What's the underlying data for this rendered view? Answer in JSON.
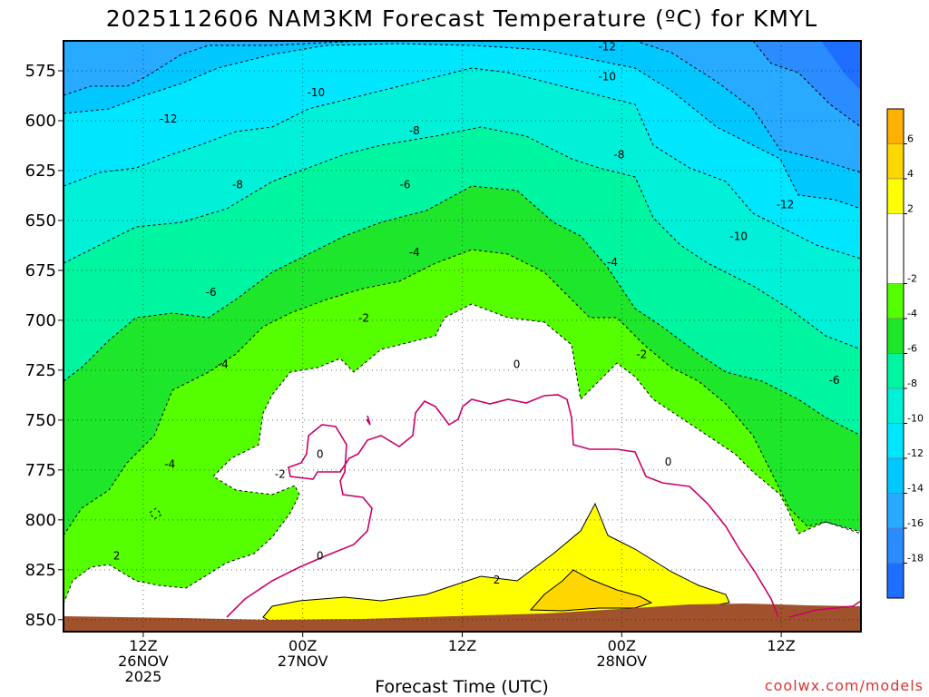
{
  "chart_data": {
    "type": "contour",
    "title": "2025112606 NAM3KM Forecast Temperature (ºC) for KMYL",
    "xlabel": "Forecast Time (UTC)",
    "ylabel": "",
    "credit": "coolwx.com/models",
    "credit_color": "#dd3333",
    "x_range_hours": [
      0,
      60
    ],
    "y_range_hpa": [
      560,
      856
    ],
    "y_ticks": [
      575,
      600,
      625,
      650,
      675,
      700,
      725,
      750,
      775,
      800,
      825,
      850
    ],
    "x_ticks": [
      {
        "hour": 6,
        "line1": "12Z",
        "line2": "26NOV",
        "line3": "2025"
      },
      {
        "hour": 18,
        "line1": "00Z",
        "line2": "27NOV",
        "line3": ""
      },
      {
        "hour": 30,
        "line1": "12Z",
        "line2": "",
        "line3": ""
      },
      {
        "hour": 42,
        "line1": "00Z",
        "line2": "28NOV",
        "line3": ""
      },
      {
        "hour": 54,
        "line1": "12Z",
        "line2": "",
        "line3": ""
      }
    ],
    "colorbar": [
      {
        "lo": -20,
        "hi": -18,
        "color": "#1e6eff"
      },
      {
        "lo": -18,
        "hi": -16,
        "color": "#2a8cff"
      },
      {
        "lo": -16,
        "hi": -14,
        "color": "#27aaff"
      },
      {
        "lo": -14,
        "hi": -12,
        "color": "#00c8ff"
      },
      {
        "lo": -12,
        "hi": -10,
        "color": "#00e6ff"
      },
      {
        "lo": -10,
        "hi": -8,
        "color": "#00f0d8"
      },
      {
        "lo": -8,
        "hi": -6,
        "color": "#00f5a0"
      },
      {
        "lo": -6,
        "hi": -4,
        "color": "#1ee62a"
      },
      {
        "lo": -4,
        "hi": -2,
        "color": "#55ff00"
      },
      {
        "lo": -2,
        "hi": 2,
        "color": "#ffffff"
      },
      {
        "lo": 2,
        "hi": 4,
        "color": "#ffff00"
      },
      {
        "lo": 4,
        "hi": 6,
        "color": "#ffd700"
      },
      {
        "lo": 6,
        "hi": 8,
        "color": "#ffb000"
      }
    ],
    "colorbar_labels": [
      "6",
      "4",
      "2",
      "-2",
      "-4",
      "-6",
      "-8",
      "-10",
      "-12",
      "-14",
      "-16",
      "-18"
    ],
    "ground_color": "#a0522d",
    "zero_line_color": "#cc0066",
    "contour_labels": [
      {
        "text": "-12",
        "hour": 40.9,
        "p": 563
      },
      {
        "text": "-10",
        "hour": 19.0,
        "p": 586
      },
      {
        "text": "-10",
        "hour": 40.9,
        "p": 578
      },
      {
        "text": "-12",
        "hour": 7.9,
        "p": 599
      },
      {
        "text": "-8",
        "hour": 26.4,
        "p": 605
      },
      {
        "text": "-8",
        "hour": 41.8,
        "p": 617
      },
      {
        "text": "-12",
        "hour": 54.3,
        "p": 642
      },
      {
        "text": "-8",
        "hour": 13.1,
        "p": 632
      },
      {
        "text": "-6",
        "hour": 25.7,
        "p": 632
      },
      {
        "text": "-10",
        "hour": 50.8,
        "p": 658
      },
      {
        "text": "-4",
        "hour": 26.4,
        "p": 666
      },
      {
        "text": "-4",
        "hour": 41.3,
        "p": 671
      },
      {
        "text": "-6",
        "hour": 11.1,
        "p": 686
      },
      {
        "text": "-2",
        "hour": 22.6,
        "p": 699
      },
      {
        "text": "-4",
        "hour": 12.0,
        "p": 722
      },
      {
        "text": "-2",
        "hour": 43.5,
        "p": 717
      },
      {
        "text": "-6",
        "hour": 58.0,
        "p": 730
      },
      {
        "text": "0",
        "hour": 34.1,
        "p": 722
      },
      {
        "text": "0",
        "hour": 19.3,
        "p": 767
      },
      {
        "text": "0",
        "hour": 45.5,
        "p": 771
      },
      {
        "text": "-4",
        "hour": 8.0,
        "p": 772
      },
      {
        "text": "-2",
        "hour": 16.3,
        "p": 777
      },
      {
        "text": "0",
        "hour": 19.3,
        "p": 818
      },
      {
        "text": "2",
        "hour": 4.0,
        "p": 818
      },
      {
        "text": "2",
        "hour": 32.6,
        "p": 830
      }
    ]
  }
}
